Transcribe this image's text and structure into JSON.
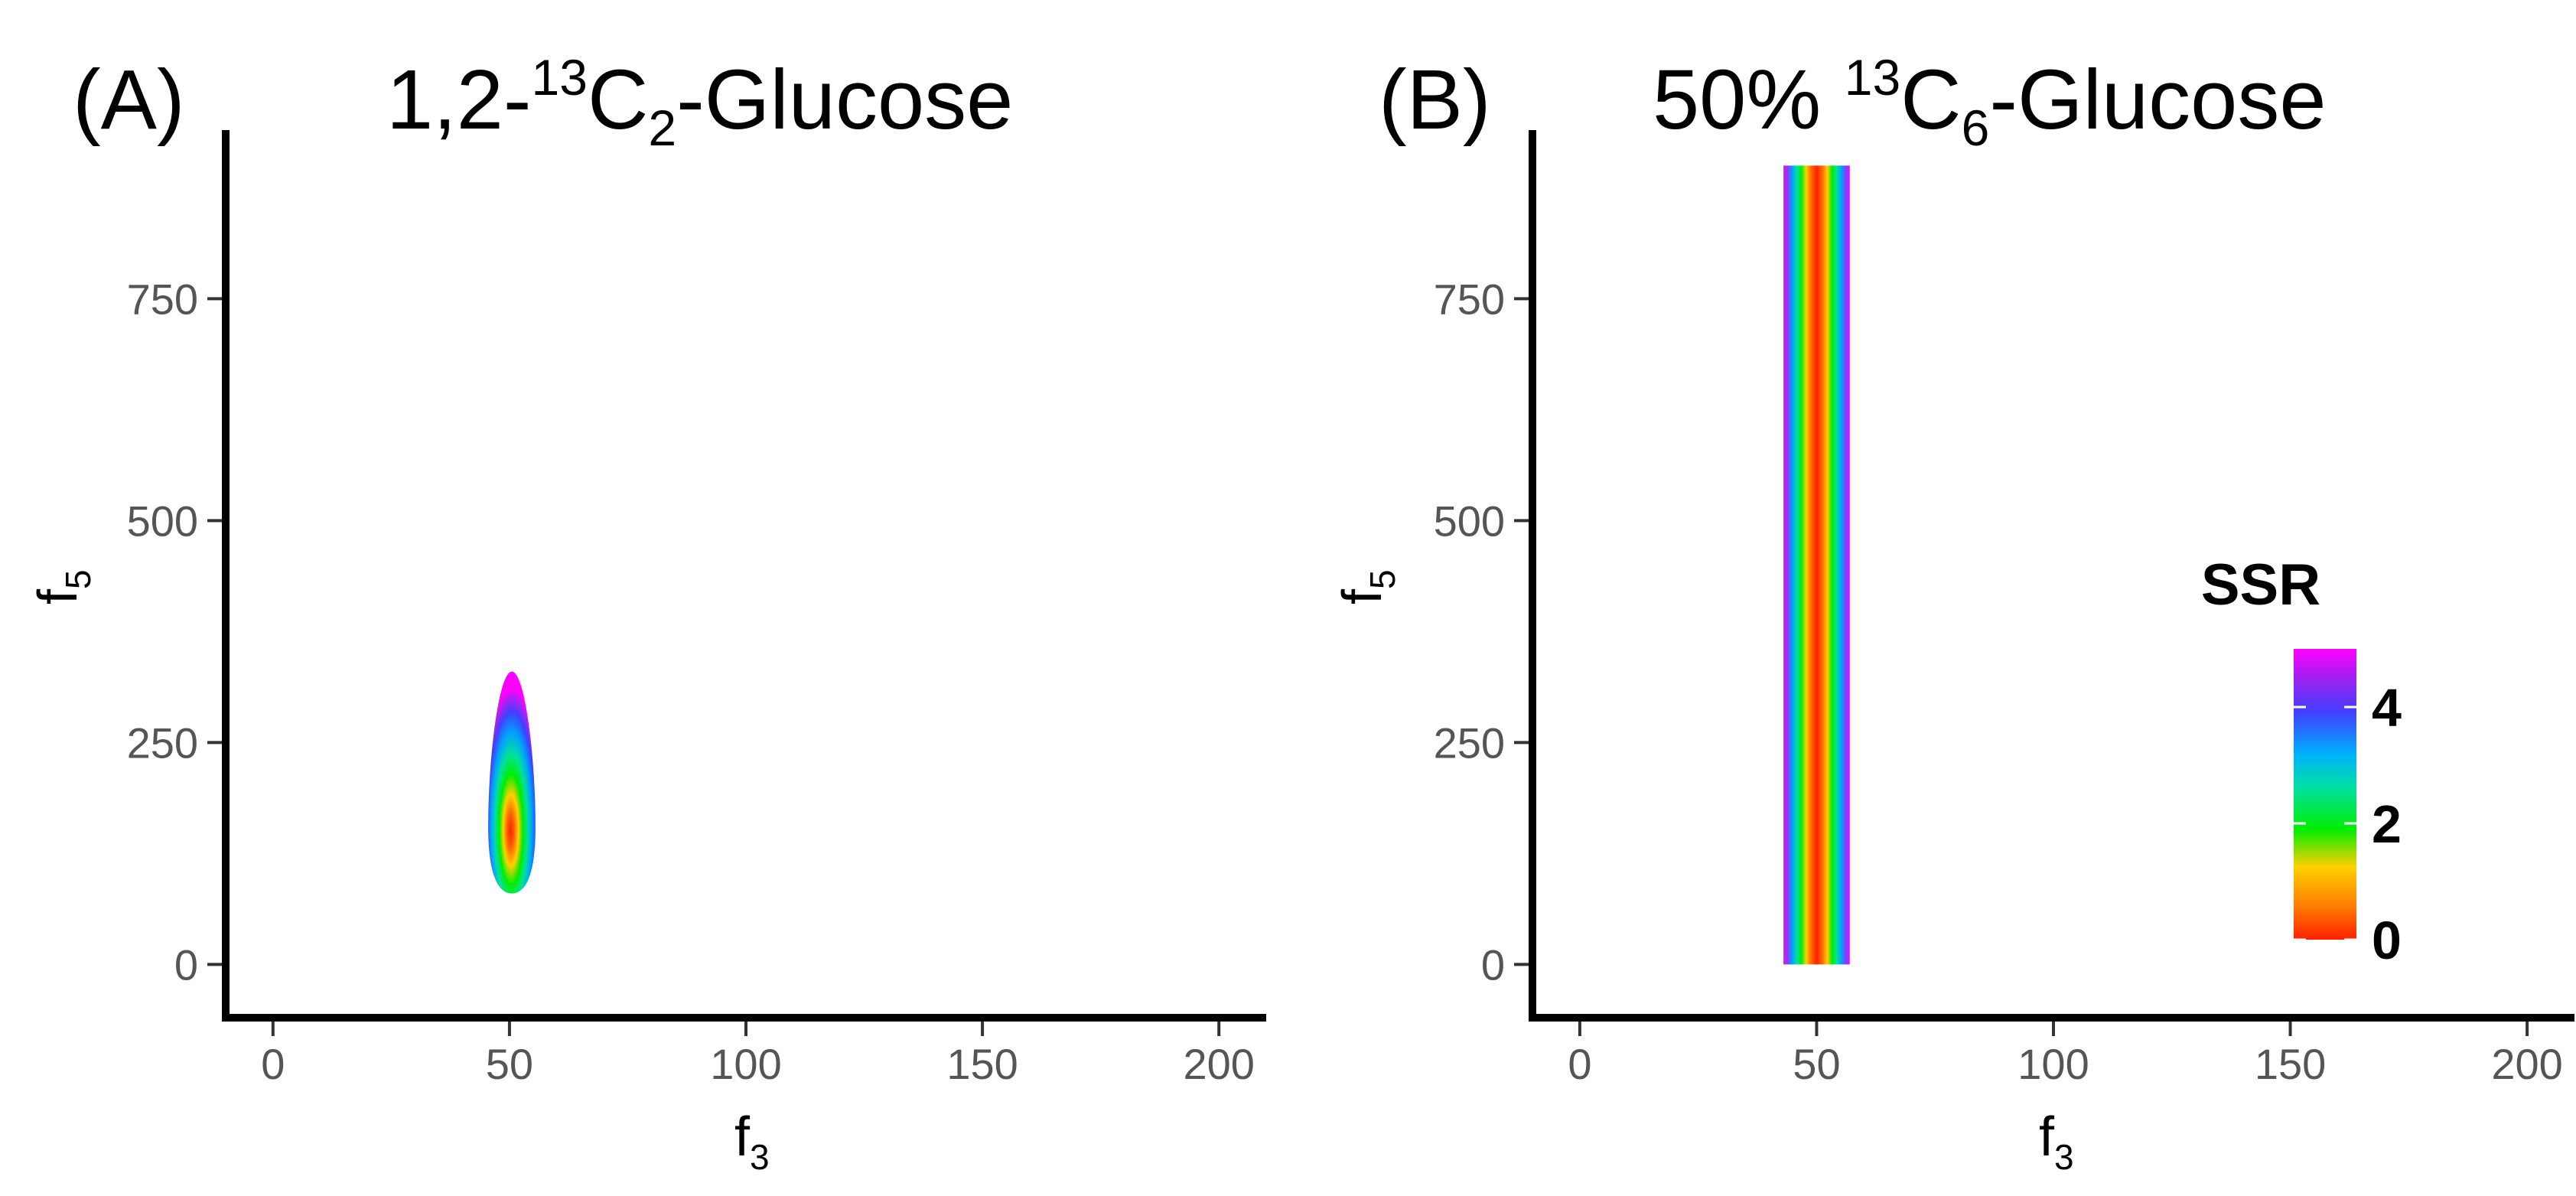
{
  "chart_data": [
    {
      "panel": "(A)",
      "type": "heatmap",
      "title": {
        "prefix": "1,2-",
        "sup": "13",
        "base": "C",
        "sub": "2",
        "suffix": "-Glucose"
      },
      "xlabel": {
        "base": "f",
        "sub": "3"
      },
      "ylabel": {
        "base": "f",
        "sub": "5"
      },
      "xlim": [
        -10,
        210
      ],
      "ylim": [
        -60,
        940
      ],
      "xticks": [
        0,
        50,
        100,
        150,
        200
      ],
      "yticks": [
        0,
        250,
        500,
        750
      ],
      "region": {
        "shape": "ellipse",
        "center_f3": 50,
        "center_f5": 155,
        "f3_min": 45.5,
        "f3_max": 55.5,
        "f5_min": 80,
        "f5_max": 330,
        "min_at_f5": 155
      }
    },
    {
      "panel": "(B)",
      "type": "heatmap",
      "title": {
        "prefix": "50% ",
        "sup": "13",
        "base": "C",
        "sub": "6",
        "suffix": "-Glucose"
      },
      "xlabel": {
        "base": "f",
        "sub": "3"
      },
      "ylabel": {
        "base": "f",
        "sub": "5"
      },
      "xlim": [
        -10,
        210
      ],
      "ylim": [
        -60,
        940
      ],
      "xticks": [
        0,
        50,
        100,
        150,
        200
      ],
      "yticks": [
        0,
        250,
        500,
        750
      ],
      "region": {
        "shape": "band",
        "f3_center": 50,
        "f3_min": 43,
        "f3_max": 57,
        "f5_min": 0,
        "f5_max": 900
      }
    }
  ],
  "legend": {
    "title": "SSR",
    "breaks": [
      0,
      2,
      4
    ],
    "range": [
      0,
      5
    ],
    "colors": [
      "#ff2000",
      "#ff8000",
      "#ffd000",
      "#00ee00",
      "#00e0a0",
      "#00b0ff",
      "#4040ff",
      "#a020f0",
      "#ff00ff"
    ]
  }
}
